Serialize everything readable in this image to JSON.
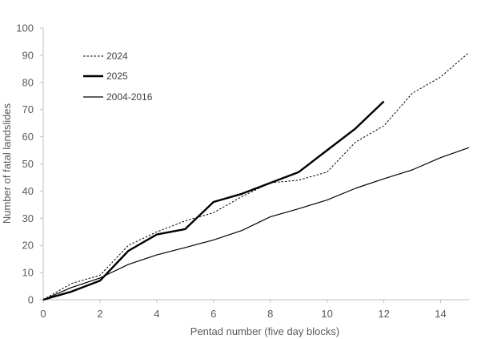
{
  "chart_data": {
    "type": "line",
    "xlabel": "Pentad number (five day blocks)",
    "ylabel": "Number of fatal landslides",
    "xlim": [
      0,
      15
    ],
    "ylim": [
      0,
      100
    ],
    "xticks": [
      0,
      2,
      4,
      6,
      8,
      10,
      12,
      14
    ],
    "yticks": [
      0,
      10,
      20,
      30,
      40,
      50,
      60,
      70,
      80,
      90,
      100
    ],
    "grid": false,
    "legend": "top-left",
    "series": [
      {
        "name": "2024",
        "style": "dashed",
        "color": "#000000",
        "x": [
          0,
          1,
          2,
          3,
          4,
          5,
          6,
          7,
          8,
          9,
          10,
          11,
          12,
          13,
          14,
          15
        ],
        "y": [
          0,
          6,
          9,
          20,
          25,
          29,
          32,
          38,
          43,
          44,
          47,
          58,
          64,
          76,
          82,
          91
        ]
      },
      {
        "name": "2025",
        "style": "solid-thick",
        "color": "#000000",
        "x": [
          0,
          1,
          2,
          3,
          4,
          5,
          6,
          7,
          8,
          9,
          10,
          11,
          12
        ],
        "y": [
          0,
          3,
          7,
          18,
          24,
          26,
          36,
          39,
          43,
          47,
          55,
          63,
          73
        ]
      },
      {
        "name": "2004-2016",
        "style": "solid-thin",
        "color": "#000000",
        "x": [
          0,
          1,
          2,
          3,
          4,
          5,
          6,
          7,
          8,
          9,
          10,
          11,
          12,
          13,
          14,
          15
        ],
        "y": [
          0,
          4.5,
          8,
          13,
          16.5,
          19.2,
          22,
          25.5,
          30.5,
          33.5,
          36.7,
          41,
          44.5,
          47.8,
          52.3,
          56
        ]
      }
    ]
  }
}
